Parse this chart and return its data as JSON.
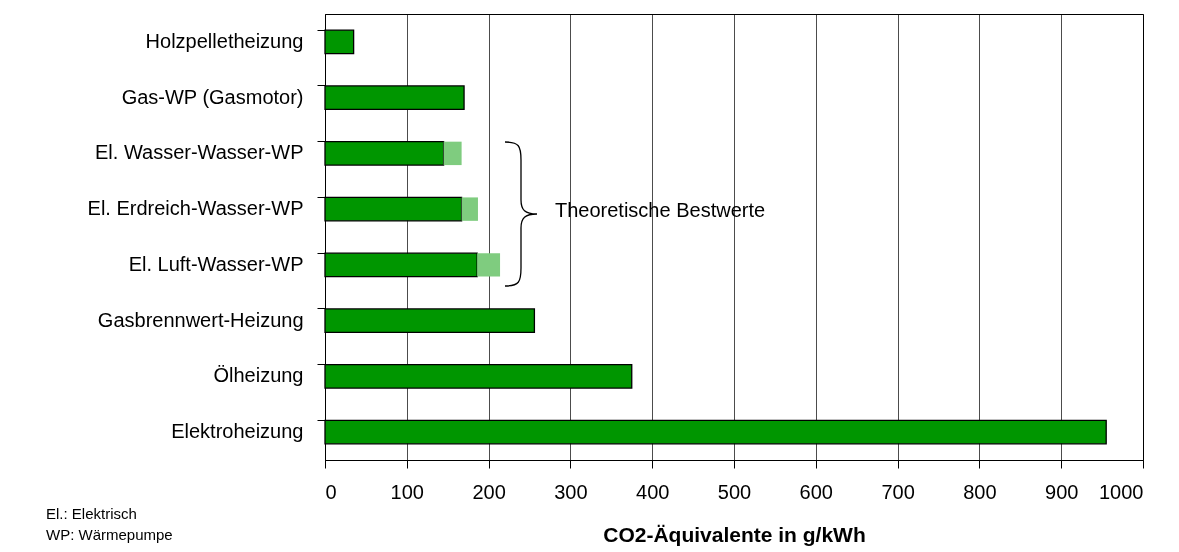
{
  "chart_data": {
    "type": "bar",
    "orientation": "horizontal",
    "stacked": true,
    "xlabel": "CO2-Äquivalente in g/kWh",
    "categories": [
      "Holzpelletheizung",
      "Gas-WP (Gasmotor)",
      "El. Wasser-Wasser-WP",
      "El. Erdreich-Wasser-WP",
      "El. Luft-Wasser-WP",
      "Gasbrennwert-Heizung",
      "Ölheizung",
      "Elektroheizung"
    ],
    "series": [
      {
        "color": "#009600",
        "values": [
          35,
          170,
          145,
          167,
          186,
          256,
          375,
          955
        ]
      },
      {
        "color": "#7fcc7f",
        "values": [
          null,
          null,
          22,
          20,
          28,
          null,
          null,
          null
        ]
      }
    ],
    "xlim": [
      0,
      1000
    ],
    "xticks": [
      0,
      100,
      200,
      300,
      400,
      500,
      600,
      700,
      800,
      900,
      1000
    ],
    "grid": "x",
    "annotations": [
      "Theoretische Bestwerte",
      "El.: Elektrisch",
      "WP: Wärmepumpe"
    ]
  }
}
